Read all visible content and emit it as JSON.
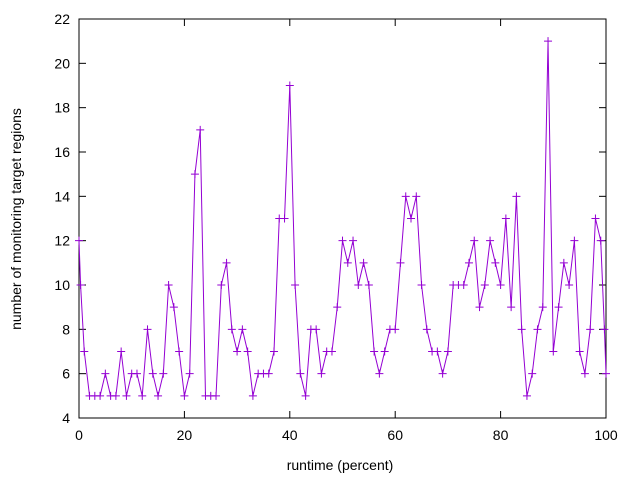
{
  "chart_data": {
    "type": "line",
    "title": "",
    "xlabel": "runtime (percent)",
    "ylabel": "number of monitoring target regions",
    "xlim": [
      0,
      100
    ],
    "ylim": [
      4,
      22
    ],
    "xticks": [
      0,
      20,
      40,
      60,
      80,
      100
    ],
    "yticks": [
      4,
      6,
      8,
      10,
      12,
      14,
      16,
      18,
      20,
      22
    ],
    "grid": false,
    "legend": "none",
    "series": [
      {
        "color": "#9400d3",
        "marker": "plus",
        "x": [
          0,
          0.3,
          1,
          2,
          3,
          4,
          5,
          6,
          7,
          8,
          9,
          10,
          11,
          12,
          13,
          14,
          15,
          16,
          17,
          18,
          19,
          20,
          21,
          22,
          23,
          24,
          25,
          26,
          27,
          28,
          29,
          30,
          31,
          32,
          33,
          34,
          35,
          36,
          37,
          38,
          39,
          40,
          41,
          42,
          43,
          44,
          45,
          46,
          47,
          48,
          49,
          50,
          51,
          52,
          53,
          54,
          55,
          56,
          57,
          58,
          59,
          60,
          61,
          62,
          63,
          64,
          65,
          66,
          67,
          68,
          69,
          70,
          71,
          72,
          73,
          74,
          75,
          76,
          77,
          78,
          79,
          80,
          81,
          82,
          83,
          84,
          85,
          86,
          87,
          88,
          89,
          90,
          91,
          92,
          93,
          94,
          95,
          96,
          97,
          98,
          99,
          99.7,
          100
        ],
        "y": [
          12,
          10,
          7,
          5,
          5,
          5,
          6,
          5,
          5,
          7,
          5,
          6,
          6,
          5,
          8,
          6,
          5,
          6,
          10,
          9,
          7,
          5,
          6,
          15,
          17,
          5,
          5,
          5,
          10,
          11,
          8,
          7,
          8,
          7,
          5,
          6,
          6,
          6,
          7,
          13,
          13,
          19,
          10,
          6,
          5,
          8,
          8,
          6,
          7,
          7,
          9,
          12,
          11,
          12,
          10,
          11,
          10,
          7,
          6,
          7,
          8,
          8,
          11,
          14,
          13,
          14,
          10,
          8,
          7,
          7,
          6,
          7,
          10,
          10,
          10,
          11,
          12,
          9,
          10,
          12,
          11,
          10,
          13,
          9,
          14,
          8,
          5,
          6,
          8,
          9,
          21,
          7,
          9,
          11,
          10,
          12,
          7,
          6,
          8,
          13,
          12,
          8,
          6
        ]
      }
    ]
  }
}
